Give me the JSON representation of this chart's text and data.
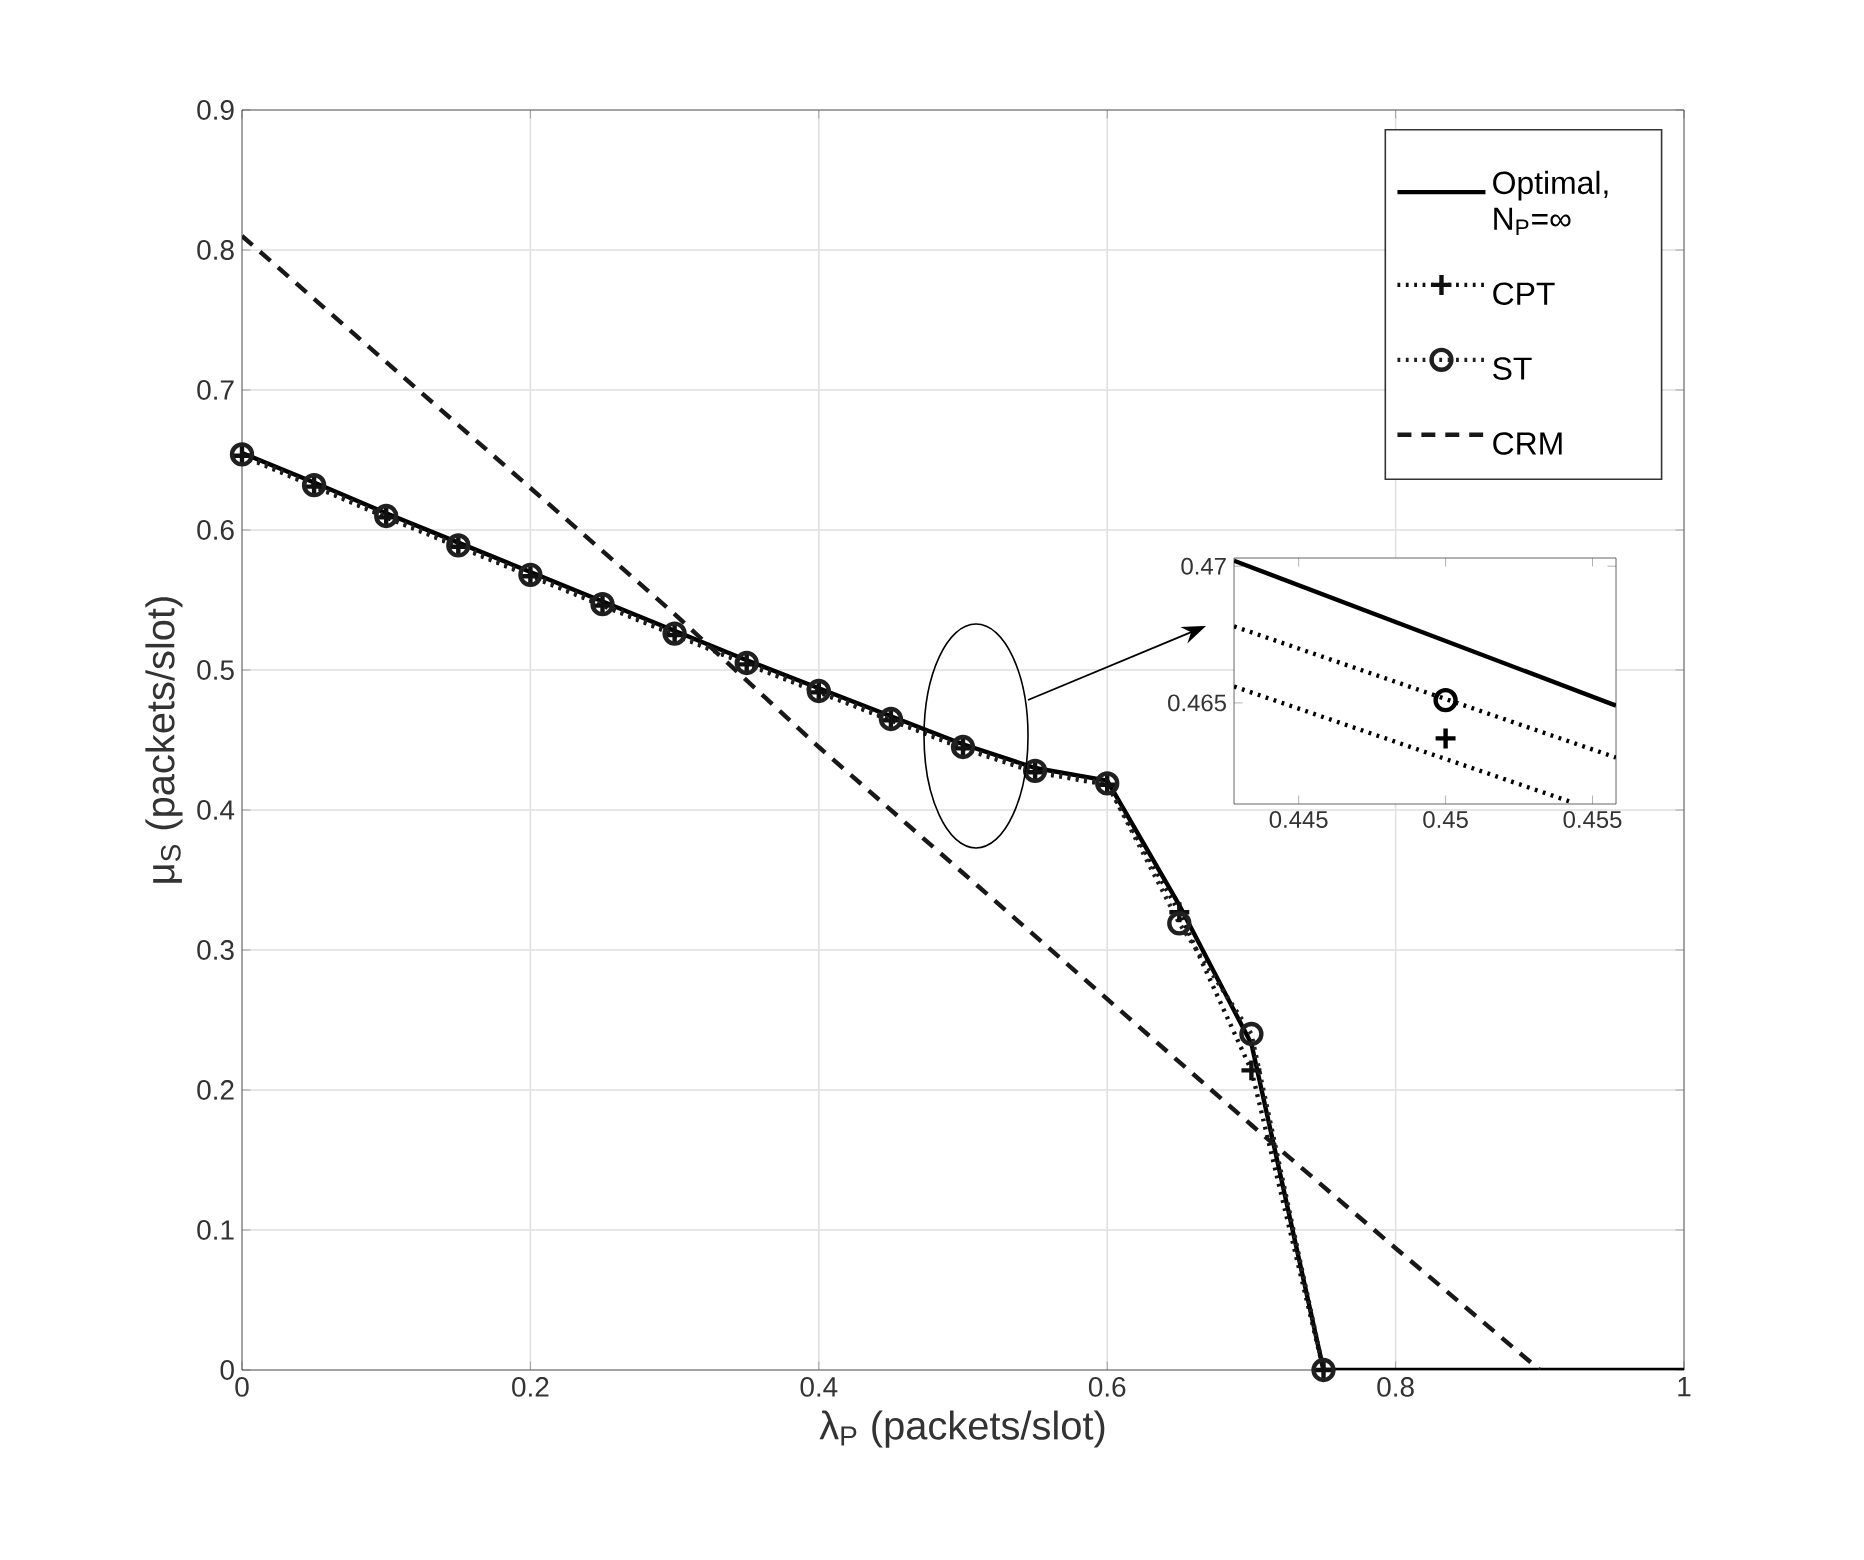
{
  "chart_data": [
    {
      "type": "line",
      "xlabel": "λ$_{P}$ (packets/slot)",
      "ylabel": "μ$_{S}$ (packets/slot)",
      "xlim": [
        0,
        1
      ],
      "ylim": [
        0,
        0.9
      ],
      "xticks": [
        0,
        0.2,
        0.4,
        0.6,
        0.8,
        1
      ],
      "yticks": [
        0,
        0.1,
        0.2,
        0.3,
        0.4,
        0.5,
        0.6,
        0.7,
        0.8,
        0.9
      ],
      "grid": true,
      "legend": "top right",
      "series": [
        {
          "name": "Optimal, N$_{P}$=∞",
          "color": "#000000",
          "line_style": "solid",
          "marker": "none",
          "x": [
            0,
            0.05,
            0.1,
            0.15,
            0.2,
            0.25,
            0.3,
            0.35,
            0.4,
            0.45,
            0.5,
            0.55,
            0.6,
            0.65,
            0.7,
            0.75,
            1
          ],
          "values": [
            0.655,
            0.634,
            0.612,
            0.591,
            0.57,
            0.549,
            0.528,
            0.507,
            0.487,
            0.467,
            0.447,
            0.43,
            0.421,
            0.332,
            0.233,
            0,
            0
          ]
        },
        {
          "name": "CPT",
          "color": "#101010",
          "line_style": "dotted",
          "marker": "cross",
          "x": [
            0,
            0.05,
            0.1,
            0.15,
            0.2,
            0.25,
            0.3,
            0.35,
            0.4,
            0.45,
            0.5,
            0.55,
            0.6,
            0.65,
            0.7,
            0.75
          ],
          "values": [
            0.653,
            0.631,
            0.609,
            0.588,
            0.567,
            0.546,
            0.525,
            0.504,
            0.484,
            0.464,
            0.444,
            0.427,
            0.418,
            0.327,
            0.214,
            0
          ]
        },
        {
          "name": "ST",
          "color": "#202020",
          "line_style": "dotted",
          "marker": "circle",
          "x": [
            0,
            0.05,
            0.1,
            0.15,
            0.2,
            0.25,
            0.3,
            0.35,
            0.4,
            0.45,
            0.5,
            0.55,
            0.6,
            0.65,
            0.7,
            0.75
          ],
          "values": [
            0.654,
            0.632,
            0.61,
            0.589,
            0.568,
            0.547,
            0.526,
            0.505,
            0.485,
            0.465,
            0.445,
            0.428,
            0.419,
            0.319,
            0.24,
            0
          ]
        },
        {
          "name": "CRM",
          "color": "#181818",
          "line_style": "dashed",
          "marker": "none",
          "x": [
            0,
            0.1,
            0.2,
            0.3,
            0.4,
            0.5,
            0.6,
            0.7,
            0.8,
            0.9
          ],
          "values": [
            0.81,
            0.72,
            0.63,
            0.54,
            0.445,
            0.355,
            0.265,
            0.175,
            0.087,
            0
          ]
        }
      ]
    },
    {
      "type": "line",
      "xlim": [
        0.4428,
        0.4558
      ],
      "ylim": [
        0.4613,
        0.4703
      ],
      "xticks": [
        0.445,
        0.45,
        0.455
      ],
      "yticks": [
        0.465,
        0.47
      ],
      "series": [
        {
          "color": "#000000",
          "line_style": "solid",
          "marker": "none",
          "x": [
            0.4428,
            0.4558
          ],
          "values": [
            0.4702,
            0.4649
          ]
        },
        {
          "color": "#000000",
          "line_style": "dotted",
          "marker": "none",
          "x": [
            0.4428,
            0.4558
          ],
          "values": [
            0.4678,
            0.463
          ]
        },
        {
          "color": "#000000",
          "line_style": "dotted",
          "marker": "none",
          "x": [
            0.4428,
            0.4542
          ],
          "values": [
            0.4656,
            0.4614
          ]
        },
        {
          "type": "scatter",
          "color": "#000000",
          "marker": "circle",
          "x": [
            0.45
          ],
          "values": [
            0.4651
          ]
        },
        {
          "type": "scatter",
          "color": "#000000",
          "marker": "cross",
          "x": [
            0.45
          ],
          "values": [
            0.4637
          ]
        }
      ]
    }
  ]
}
